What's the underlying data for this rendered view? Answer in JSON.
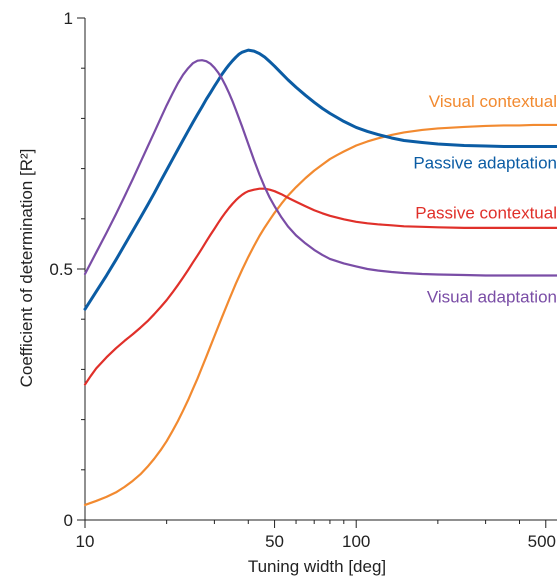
{
  "chart_data": {
    "type": "line",
    "title": "",
    "xlabel": "Tuning width [deg]",
    "ylabel": "Coefficient of determination [R²]",
    "xscale": "log",
    "xlim": [
      10,
      550
    ],
    "ylim": [
      0,
      1
    ],
    "grid": false,
    "x_ticks": [
      10,
      50,
      100,
      500
    ],
    "x_tick_labels": [
      "10",
      "50",
      "100",
      "500"
    ],
    "x_minor_ticks": [
      20,
      30,
      40,
      60,
      70,
      80,
      90,
      200,
      300,
      400
    ],
    "y_ticks": [
      0,
      0.5,
      1
    ],
    "y_tick_labels": [
      "0",
      "0.5",
      "1"
    ],
    "y_minor_ticks": [
      0.1,
      0.2,
      0.3,
      0.4,
      0.6,
      0.7,
      0.8,
      0.9
    ],
    "series": [
      {
        "name": "Visual contextual",
        "color": "#F28A30",
        "x": [
          10,
          11,
          12,
          13,
          14,
          15,
          16,
          17,
          18,
          19,
          20,
          21,
          22,
          23,
          24,
          25,
          26,
          27,
          28,
          29,
          30,
          32,
          34,
          36,
          38,
          40,
          42,
          44,
          46,
          48,
          50,
          53,
          56,
          60,
          65,
          70,
          75,
          80,
          85,
          90,
          100,
          110,
          120,
          135,
          150,
          175,
          200,
          250,
          300,
          350,
          400,
          450,
          500,
          550
        ],
        "y": [
          0.03,
          0.038,
          0.046,
          0.055,
          0.066,
          0.078,
          0.091,
          0.106,
          0.122,
          0.139,
          0.157,
          0.177,
          0.197,
          0.218,
          0.239,
          0.261,
          0.282,
          0.304,
          0.325,
          0.346,
          0.366,
          0.404,
          0.439,
          0.471,
          0.499,
          0.524,
          0.546,
          0.566,
          0.583,
          0.598,
          0.612,
          0.63,
          0.646,
          0.663,
          0.681,
          0.696,
          0.708,
          0.719,
          0.727,
          0.734,
          0.746,
          0.754,
          0.76,
          0.767,
          0.772,
          0.777,
          0.78,
          0.783,
          0.785,
          0.786,
          0.786,
          0.787,
          0.787,
          0.787
        ]
      },
      {
        "name": "Passive adaptation",
        "color": "#0B5CA4",
        "x": [
          10,
          11,
          12,
          13,
          14,
          15,
          16,
          17,
          18,
          19,
          20,
          21,
          22,
          23,
          24,
          25,
          26,
          27,
          28,
          29,
          30,
          31,
          32,
          33,
          34,
          35,
          36,
          37,
          38,
          40,
          42,
          44,
          46,
          48,
          50,
          53,
          56,
          60,
          65,
          70,
          75,
          80,
          90,
          100,
          110,
          120,
          135,
          150,
          175,
          200,
          250,
          300,
          350,
          400,
          500,
          550
        ],
        "y": [
          0.42,
          0.455,
          0.487,
          0.518,
          0.548,
          0.576,
          0.602,
          0.627,
          0.651,
          0.675,
          0.697,
          0.718,
          0.738,
          0.757,
          0.775,
          0.792,
          0.808,
          0.823,
          0.838,
          0.851,
          0.864,
          0.876,
          0.888,
          0.898,
          0.907,
          0.915,
          0.922,
          0.928,
          0.932,
          0.936,
          0.934,
          0.929,
          0.922,
          0.913,
          0.904,
          0.89,
          0.877,
          0.862,
          0.846,
          0.832,
          0.82,
          0.81,
          0.794,
          0.782,
          0.774,
          0.768,
          0.761,
          0.756,
          0.752,
          0.749,
          0.746,
          0.745,
          0.744,
          0.744,
          0.744,
          0.744
        ]
      },
      {
        "name": "Passive contextual",
        "color": "#E0302A",
        "x": [
          10,
          10.5,
          11,
          12,
          13,
          14,
          15,
          16,
          17,
          18,
          19,
          20,
          21,
          22,
          23,
          24,
          25,
          26,
          27,
          28,
          29,
          30,
          31,
          32,
          33,
          34,
          35,
          36,
          37,
          38,
          39,
          40,
          42,
          44,
          46,
          48,
          50,
          53,
          56,
          60,
          65,
          70,
          75,
          80,
          90,
          100,
          110,
          120,
          135,
          150,
          175,
          200,
          250,
          300,
          350,
          400,
          500,
          550
        ],
        "y": [
          0.27,
          0.287,
          0.302,
          0.324,
          0.342,
          0.357,
          0.37,
          0.383,
          0.396,
          0.41,
          0.424,
          0.438,
          0.453,
          0.468,
          0.483,
          0.498,
          0.513,
          0.527,
          0.541,
          0.555,
          0.568,
          0.58,
          0.592,
          0.603,
          0.613,
          0.622,
          0.63,
          0.637,
          0.643,
          0.648,
          0.652,
          0.655,
          0.658,
          0.66,
          0.66,
          0.658,
          0.655,
          0.649,
          0.642,
          0.634,
          0.625,
          0.617,
          0.611,
          0.606,
          0.599,
          0.594,
          0.591,
          0.589,
          0.587,
          0.585,
          0.584,
          0.583,
          0.582,
          0.582,
          0.582,
          0.582,
          0.582,
          0.582
        ]
      },
      {
        "name": "Visual adaptation",
        "color": "#7A4DA6",
        "x": [
          10,
          11,
          12,
          13,
          14,
          15,
          16,
          17,
          18,
          19,
          20,
          21,
          22,
          23,
          24,
          25,
          26,
          27,
          28,
          29,
          30,
          31,
          32,
          33,
          34,
          35,
          36,
          38,
          40,
          42,
          44,
          46,
          48,
          50,
          53,
          56,
          60,
          65,
          70,
          75,
          80,
          90,
          100,
          110,
          120,
          135,
          150,
          175,
          200,
          250,
          300,
          350,
          400,
          500,
          550
        ],
        "y": [
          0.49,
          0.533,
          0.572,
          0.609,
          0.645,
          0.679,
          0.712,
          0.743,
          0.772,
          0.8,
          0.826,
          0.849,
          0.87,
          0.887,
          0.9,
          0.91,
          0.915,
          0.916,
          0.914,
          0.909,
          0.901,
          0.891,
          0.879,
          0.865,
          0.85,
          0.834,
          0.817,
          0.783,
          0.749,
          0.717,
          0.688,
          0.663,
          0.642,
          0.625,
          0.603,
          0.585,
          0.567,
          0.551,
          0.538,
          0.528,
          0.52,
          0.511,
          0.505,
          0.5,
          0.497,
          0.494,
          0.492,
          0.49,
          0.489,
          0.488,
          0.487,
          0.487,
          0.487,
          0.487,
          0.487
        ]
      }
    ],
    "labels": [
      {
        "text": "Visual contextual",
        "series": 0,
        "anchor_x": 550,
        "anchor_y": 0.835,
        "color": "#F28A30"
      },
      {
        "text": "Passive adaptation",
        "series": 1,
        "anchor_x": 550,
        "anchor_y": 0.712,
        "color": "#0B5CA4"
      },
      {
        "text": "Passive contextual",
        "series": 2,
        "anchor_x": 550,
        "anchor_y": 0.613,
        "color": "#E0302A"
      },
      {
        "text": "Visual adaptation",
        "series": 3,
        "anchor_x": 550,
        "anchor_y": 0.445,
        "color": "#7A4DA6"
      }
    ]
  }
}
